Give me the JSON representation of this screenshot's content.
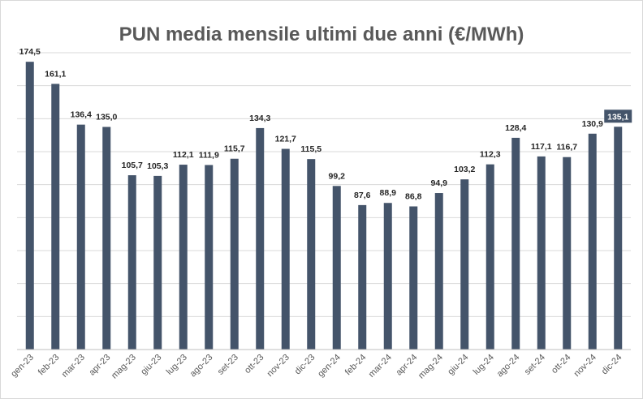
{
  "chart_data": {
    "type": "bar",
    "title": "PUN media mensile ultimi due anni (€/MWh)",
    "xlabel": "",
    "ylabel": "",
    "ylim": [
      0,
      180
    ],
    "grid": true,
    "legend": "none",
    "bar_color": "#44546a",
    "highlight_label_category": "dic-24",
    "categories": [
      "gen-23",
      "feb-23",
      "mar-23",
      "apr-23",
      "mag-23",
      "giu-23",
      "lug-23",
      "ago-23",
      "set-23",
      "ott-23",
      "nov-23",
      "dic-23",
      "gen-24",
      "feb-24",
      "mar-24",
      "apr-24",
      "mag-24",
      "giu-24",
      "lug-24",
      "ago-24",
      "set-24",
      "ott-24",
      "nov-24",
      "dic-24"
    ],
    "values": [
      174.5,
      161.1,
      136.4,
      135.0,
      105.7,
      105.3,
      112.1,
      111.9,
      115.7,
      134.3,
      121.7,
      115.5,
      99.2,
      87.6,
      88.9,
      86.8,
      94.9,
      103.2,
      112.3,
      128.4,
      117.1,
      116.7,
      130.9,
      135.1
    ],
    "value_labels": [
      "174,5",
      "161,1",
      "136,4",
      "135,0",
      "105,7",
      "105,3",
      "112,1",
      "111,9",
      "115,7",
      "134,3",
      "121,7",
      "115,5",
      "99,2",
      "87,6",
      "88,9",
      "86,8",
      "94,9",
      "103,2",
      "112,3",
      "128,4",
      "117,1",
      "116,7",
      "130,9",
      "135,1"
    ]
  }
}
